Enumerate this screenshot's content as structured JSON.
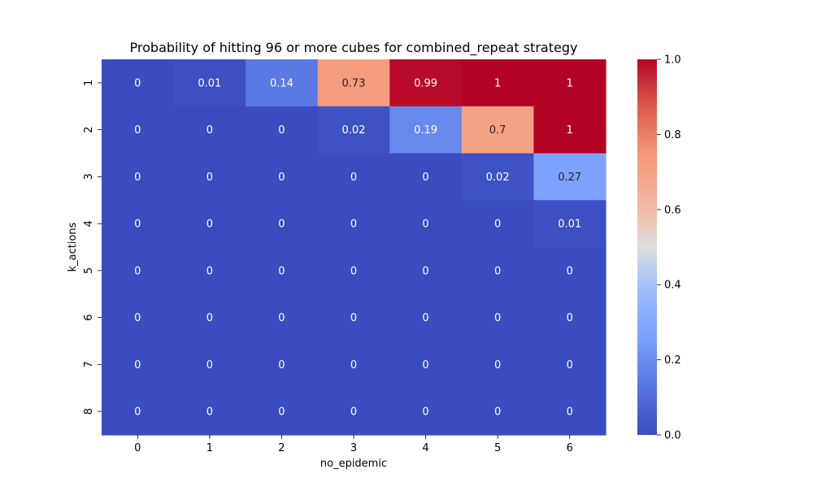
{
  "chart_data": {
    "type": "heatmap",
    "title": "Probability of hitting 96 or more cubes for combined_repeat strategy",
    "xlabel": "no_epidemic",
    "ylabel": "k_actions",
    "x_categories": [
      "0",
      "1",
      "2",
      "3",
      "4",
      "5",
      "6"
    ],
    "y_categories": [
      "1",
      "2",
      "3",
      "4",
      "5",
      "6",
      "7",
      "8"
    ],
    "values": [
      [
        0,
        0.01,
        0.14,
        0.73,
        0.99,
        1,
        1
      ],
      [
        0,
        0,
        0,
        0.02,
        0.19,
        0.7,
        1
      ],
      [
        0,
        0,
        0,
        0,
        0,
        0.02,
        0.27
      ],
      [
        0,
        0,
        0,
        0,
        0,
        0,
        0.01
      ],
      [
        0,
        0,
        0,
        0,
        0,
        0,
        0
      ],
      [
        0,
        0,
        0,
        0,
        0,
        0,
        0
      ],
      [
        0,
        0,
        0,
        0,
        0,
        0,
        0
      ],
      [
        0,
        0,
        0,
        0,
        0,
        0,
        0
      ]
    ],
    "colormap": "coolwarm",
    "colorbar": {
      "range": [
        0,
        1
      ],
      "ticks": [
        "0.0",
        "0.2",
        "0.4",
        "0.6",
        "0.8",
        "1.0"
      ]
    },
    "grid": false
  }
}
